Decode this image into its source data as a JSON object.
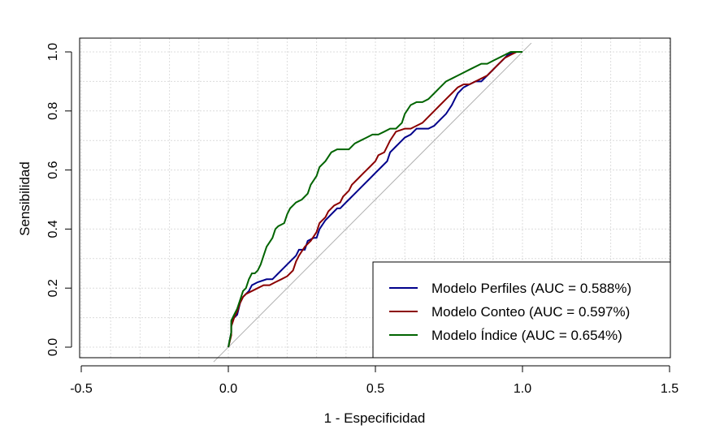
{
  "chart_data": {
    "type": "line",
    "title": "",
    "xlabel": "1 - Especificidad",
    "ylabel": "Sensibilidad",
    "xlim": [
      -0.5,
      1.5
    ],
    "ylim": [
      0.0,
      1.0
    ],
    "xticks": [
      -0.5,
      0.0,
      0.5,
      1.0,
      1.5
    ],
    "xtick_labels": [
      "-0.5",
      "0.0",
      "0.5",
      "1.0",
      "1.5"
    ],
    "yticks": [
      0.0,
      0.2,
      0.4,
      0.6,
      0.8,
      1.0
    ],
    "ytick_labels": [
      "0.0",
      "0.2",
      "0.4",
      "0.6",
      "0.8",
      "1.0"
    ],
    "grid": true,
    "legend_position": "bottom-right",
    "reference_line": {
      "from": [
        -0.05,
        -0.05
      ],
      "to": [
        1.03,
        1.03
      ],
      "color": "#b0b0b0"
    },
    "series": [
      {
        "name": "Modelo Perfiles (AUC = 0.588%)",
        "color": "#00008b",
        "points": [
          [
            0.0,
            0.0
          ],
          [
            0.01,
            0.05
          ],
          [
            0.01,
            0.08
          ],
          [
            0.02,
            0.1
          ],
          [
            0.03,
            0.11
          ],
          [
            0.04,
            0.15
          ],
          [
            0.05,
            0.17
          ],
          [
            0.07,
            0.19
          ],
          [
            0.08,
            0.21
          ],
          [
            0.1,
            0.22
          ],
          [
            0.13,
            0.23
          ],
          [
            0.15,
            0.23
          ],
          [
            0.17,
            0.25
          ],
          [
            0.19,
            0.27
          ],
          [
            0.21,
            0.29
          ],
          [
            0.23,
            0.31
          ],
          [
            0.24,
            0.33
          ],
          [
            0.26,
            0.33
          ],
          [
            0.27,
            0.36
          ],
          [
            0.29,
            0.37
          ],
          [
            0.3,
            0.37
          ],
          [
            0.31,
            0.4
          ],
          [
            0.33,
            0.43
          ],
          [
            0.35,
            0.45
          ],
          [
            0.37,
            0.47
          ],
          [
            0.38,
            0.47
          ],
          [
            0.4,
            0.49
          ],
          [
            0.41,
            0.5
          ],
          [
            0.43,
            0.52
          ],
          [
            0.44,
            0.53
          ],
          [
            0.46,
            0.55
          ],
          [
            0.48,
            0.57
          ],
          [
            0.5,
            0.59
          ],
          [
            0.52,
            0.61
          ],
          [
            0.54,
            0.63
          ],
          [
            0.55,
            0.66
          ],
          [
            0.57,
            0.68
          ],
          [
            0.58,
            0.69
          ],
          [
            0.6,
            0.71
          ],
          [
            0.62,
            0.72
          ],
          [
            0.64,
            0.74
          ],
          [
            0.66,
            0.74
          ],
          [
            0.68,
            0.74
          ],
          [
            0.7,
            0.75
          ],
          [
            0.72,
            0.77
          ],
          [
            0.74,
            0.79
          ],
          [
            0.76,
            0.82
          ],
          [
            0.77,
            0.84
          ],
          [
            0.78,
            0.86
          ],
          [
            0.8,
            0.88
          ],
          [
            0.82,
            0.89
          ],
          [
            0.84,
            0.9
          ],
          [
            0.86,
            0.9
          ],
          [
            0.87,
            0.91
          ],
          [
            0.89,
            0.93
          ],
          [
            0.91,
            0.95
          ],
          [
            0.93,
            0.97
          ],
          [
            0.94,
            0.98
          ],
          [
            0.95,
            0.99
          ],
          [
            0.97,
            1.0
          ],
          [
            1.0,
            1.0
          ]
        ]
      },
      {
        "name": "Modelo Conteo (AUC = 0.597%)",
        "color": "#8b0000",
        "points": [
          [
            0.0,
            0.0
          ],
          [
            0.01,
            0.04
          ],
          [
            0.01,
            0.07
          ],
          [
            0.02,
            0.1
          ],
          [
            0.03,
            0.12
          ],
          [
            0.04,
            0.15
          ],
          [
            0.05,
            0.17
          ],
          [
            0.06,
            0.18
          ],
          [
            0.08,
            0.19
          ],
          [
            0.1,
            0.2
          ],
          [
            0.12,
            0.21
          ],
          [
            0.14,
            0.21
          ],
          [
            0.16,
            0.22
          ],
          [
            0.18,
            0.23
          ],
          [
            0.2,
            0.24
          ],
          [
            0.22,
            0.26
          ],
          [
            0.23,
            0.29
          ],
          [
            0.24,
            0.31
          ],
          [
            0.26,
            0.34
          ],
          [
            0.28,
            0.36
          ],
          [
            0.3,
            0.39
          ],
          [
            0.31,
            0.42
          ],
          [
            0.33,
            0.44
          ],
          [
            0.34,
            0.46
          ],
          [
            0.36,
            0.48
          ],
          [
            0.38,
            0.49
          ],
          [
            0.39,
            0.51
          ],
          [
            0.41,
            0.53
          ],
          [
            0.42,
            0.55
          ],
          [
            0.44,
            0.57
          ],
          [
            0.46,
            0.59
          ],
          [
            0.48,
            0.61
          ],
          [
            0.5,
            0.63
          ],
          [
            0.51,
            0.65
          ],
          [
            0.53,
            0.66
          ],
          [
            0.55,
            0.7
          ],
          [
            0.57,
            0.73
          ],
          [
            0.6,
            0.74
          ],
          [
            0.62,
            0.74
          ],
          [
            0.64,
            0.75
          ],
          [
            0.66,
            0.76
          ],
          [
            0.68,
            0.78
          ],
          [
            0.7,
            0.8
          ],
          [
            0.72,
            0.82
          ],
          [
            0.74,
            0.84
          ],
          [
            0.76,
            0.86
          ],
          [
            0.78,
            0.88
          ],
          [
            0.8,
            0.89
          ],
          [
            0.82,
            0.89
          ],
          [
            0.84,
            0.9
          ],
          [
            0.86,
            0.91
          ],
          [
            0.88,
            0.92
          ],
          [
            0.9,
            0.94
          ],
          [
            0.92,
            0.96
          ],
          [
            0.94,
            0.98
          ],
          [
            0.96,
            0.99
          ],
          [
            0.98,
            1.0
          ],
          [
            1.0,
            1.0
          ]
        ]
      },
      {
        "name": "Modelo Índice (AUC = 0.654%)",
        "color": "#006400",
        "points": [
          [
            0.0,
            0.0
          ],
          [
            0.01,
            0.05
          ],
          [
            0.01,
            0.09
          ],
          [
            0.02,
            0.11
          ],
          [
            0.03,
            0.13
          ],
          [
            0.04,
            0.16
          ],
          [
            0.05,
            0.19
          ],
          [
            0.06,
            0.2
          ],
          [
            0.07,
            0.23
          ],
          [
            0.08,
            0.25
          ],
          [
            0.09,
            0.25
          ],
          [
            0.1,
            0.26
          ],
          [
            0.11,
            0.28
          ],
          [
            0.12,
            0.31
          ],
          [
            0.13,
            0.34
          ],
          [
            0.15,
            0.37
          ],
          [
            0.16,
            0.4
          ],
          [
            0.17,
            0.41
          ],
          [
            0.19,
            0.42
          ],
          [
            0.2,
            0.45
          ],
          [
            0.21,
            0.47
          ],
          [
            0.23,
            0.49
          ],
          [
            0.25,
            0.5
          ],
          [
            0.27,
            0.52
          ],
          [
            0.28,
            0.55
          ],
          [
            0.3,
            0.58
          ],
          [
            0.31,
            0.61
          ],
          [
            0.33,
            0.63
          ],
          [
            0.35,
            0.66
          ],
          [
            0.37,
            0.67
          ],
          [
            0.39,
            0.67
          ],
          [
            0.41,
            0.67
          ],
          [
            0.43,
            0.69
          ],
          [
            0.45,
            0.7
          ],
          [
            0.47,
            0.71
          ],
          [
            0.49,
            0.72
          ],
          [
            0.51,
            0.72
          ],
          [
            0.53,
            0.73
          ],
          [
            0.55,
            0.74
          ],
          [
            0.57,
            0.74
          ],
          [
            0.59,
            0.76
          ],
          [
            0.6,
            0.79
          ],
          [
            0.62,
            0.82
          ],
          [
            0.64,
            0.83
          ],
          [
            0.66,
            0.83
          ],
          [
            0.68,
            0.84
          ],
          [
            0.7,
            0.86
          ],
          [
            0.72,
            0.88
          ],
          [
            0.74,
            0.9
          ],
          [
            0.76,
            0.91
          ],
          [
            0.78,
            0.92
          ],
          [
            0.8,
            0.93
          ],
          [
            0.82,
            0.94
          ],
          [
            0.84,
            0.95
          ],
          [
            0.86,
            0.96
          ],
          [
            0.88,
            0.96
          ],
          [
            0.9,
            0.97
          ],
          [
            0.92,
            0.98
          ],
          [
            0.94,
            0.99
          ],
          [
            0.96,
            1.0
          ],
          [
            1.0,
            1.0
          ]
        ]
      }
    ]
  }
}
